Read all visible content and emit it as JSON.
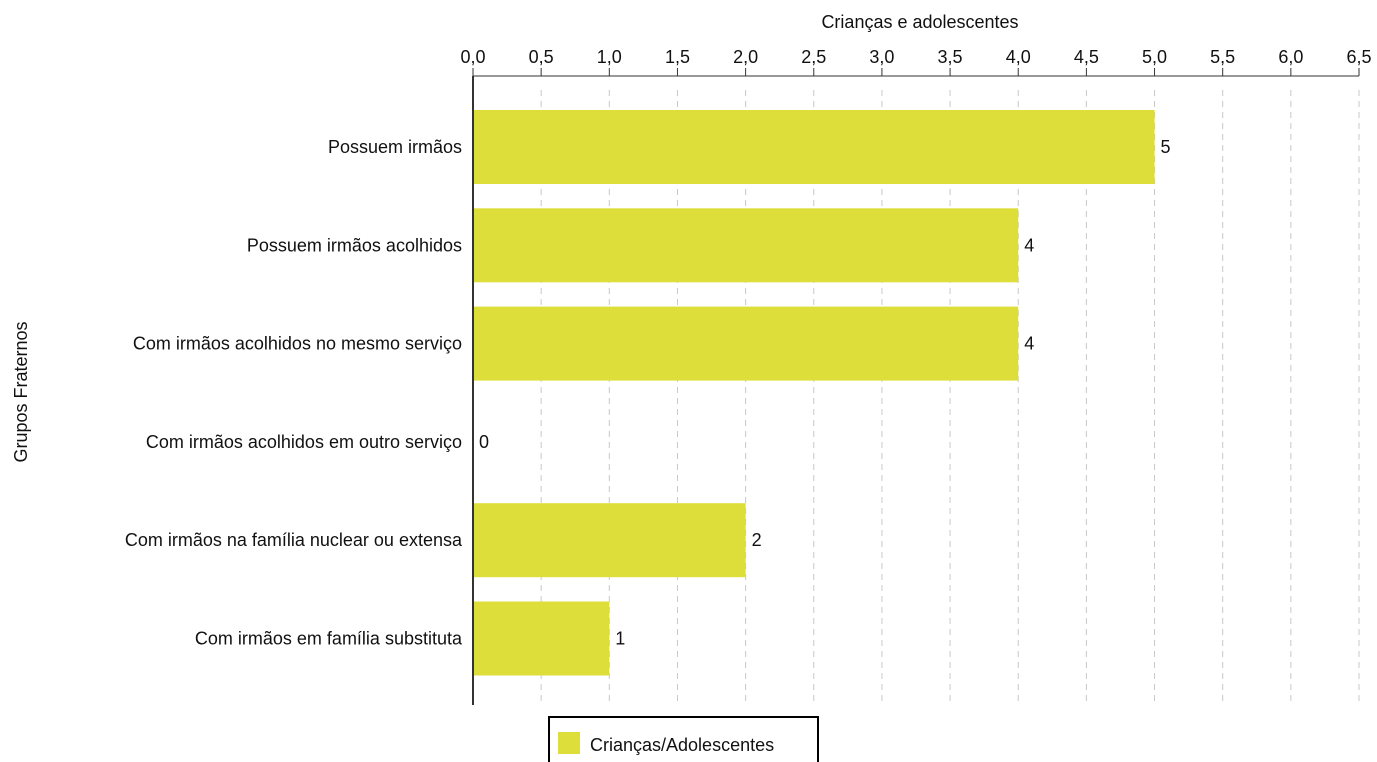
{
  "chart_data": {
    "type": "bar",
    "orientation": "horizontal",
    "title": "",
    "xlabel": "Crianças e adolescentes",
    "ylabel": "Grupos Fraternos",
    "xlim": [
      0,
      6.5
    ],
    "x_tick_step": 0.5,
    "x_ticks": [
      "0,0",
      "0,5",
      "1,0",
      "1,5",
      "2,0",
      "2,5",
      "3,0",
      "3,5",
      "4,0",
      "4,5",
      "5,0",
      "5,5",
      "6,0",
      "6,5"
    ],
    "x_axis_position": "top",
    "grid": "vertical dashed",
    "categories": [
      "Possuem irmãos",
      "Possuem irmãos acolhidos",
      "Com irmãos acolhidos no mesmo serviço",
      "Com irmãos acolhidos em outro serviço",
      "Com irmãos na família nuclear ou extensa",
      "Com irmãos em família substituta"
    ],
    "series": [
      {
        "name": "Crianças/Adolescentes",
        "values": [
          5,
          4,
          4,
          0,
          2,
          1
        ],
        "color": "#dede3b"
      }
    ],
    "data_labels": [
      "5",
      "4",
      "4",
      "0",
      "2",
      "1"
    ],
    "legend": {
      "position": "bottom-center",
      "entries": [
        "Crianças/Adolescentes"
      ]
    }
  }
}
